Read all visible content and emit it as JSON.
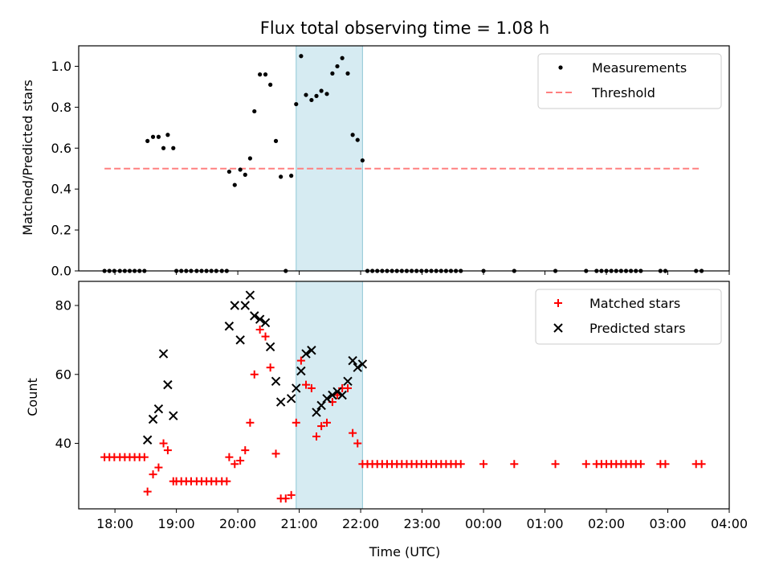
{
  "chart_data": [
    {
      "type": "scatter",
      "title": "Flux total observing time = 1.08 h",
      "xlabel": "",
      "ylabel": "Matched/Predicted stars",
      "ylim": [
        0,
        1.1
      ],
      "yticks": [
        "0.0",
        "0.2",
        "0.4",
        "0.6",
        "0.8",
        "1.0"
      ],
      "xlim": [
        17.41,
        28.0
      ],
      "shaded_span": [
        20.95,
        22.03
      ],
      "legend_position": "upper right",
      "legend": [
        "Measurements",
        "Threshold"
      ],
      "threshold": {
        "name": "Threshold",
        "value": 0.5,
        "x_range": [
          17.83,
          27.55
        ],
        "color": "#ff8080"
      },
      "series": [
        {
          "name": "Measurements",
          "color": "#000000",
          "points": [
            [
              17.83,
              0
            ],
            [
              17.91,
              0
            ],
            [
              17.99,
              0
            ],
            [
              18.08,
              0
            ],
            [
              18.16,
              0
            ],
            [
              18.24,
              0
            ],
            [
              18.32,
              0
            ],
            [
              18.4,
              0
            ],
            [
              18.48,
              0
            ],
            [
              18.53,
              0.635
            ],
            [
              18.62,
              0.655
            ],
            [
              18.71,
              0.655
            ],
            [
              18.79,
              0.6
            ],
            [
              18.86,
              0.665
            ],
            [
              18.95,
              0.6
            ],
            [
              19.0,
              0
            ],
            [
              19.08,
              0
            ],
            [
              19.16,
              0
            ],
            [
              19.24,
              0
            ],
            [
              19.33,
              0
            ],
            [
              19.41,
              0
            ],
            [
              19.49,
              0
            ],
            [
              19.57,
              0
            ],
            [
              19.65,
              0
            ],
            [
              19.74,
              0
            ],
            [
              19.82,
              0
            ],
            [
              19.86,
              0.485
            ],
            [
              19.95,
              0.42
            ],
            [
              20.04,
              0.495
            ],
            [
              20.12,
              0.47
            ],
            [
              20.2,
              0.55
            ],
            [
              20.27,
              0.78
            ],
            [
              20.36,
              0.96
            ],
            [
              20.45,
              0.96
            ],
            [
              20.53,
              0.91
            ],
            [
              20.62,
              0.635
            ],
            [
              20.7,
              0.46
            ],
            [
              20.78,
              0
            ],
            [
              20.87,
              0.465
            ],
            [
              20.95,
              0.815
            ],
            [
              21.03,
              1.05
            ],
            [
              21.11,
              0.86
            ],
            [
              21.2,
              0.835
            ],
            [
              21.28,
              0.855
            ],
            [
              21.36,
              0.88
            ],
            [
              21.45,
              0.865
            ],
            [
              21.54,
              0.965
            ],
            [
              21.62,
              1.0
            ],
            [
              21.7,
              1.04
            ],
            [
              21.79,
              0.965
            ],
            [
              21.87,
              0.665
            ],
            [
              21.95,
              0.64
            ],
            [
              22.03,
              0.54
            ],
            [
              22.11,
              0
            ],
            [
              22.19,
              0
            ],
            [
              22.27,
              0
            ],
            [
              22.35,
              0
            ],
            [
              22.43,
              0
            ],
            [
              22.51,
              0
            ],
            [
              22.59,
              0
            ],
            [
              22.67,
              0
            ],
            [
              22.75,
              0
            ],
            [
              22.83,
              0
            ],
            [
              22.91,
              0
            ],
            [
              22.99,
              0
            ],
            [
              23.07,
              0
            ],
            [
              23.15,
              0
            ],
            [
              23.23,
              0
            ],
            [
              23.31,
              0
            ],
            [
              23.39,
              0
            ],
            [
              23.47,
              0
            ],
            [
              23.55,
              0
            ],
            [
              23.63,
              0
            ],
            [
              24.0,
              0
            ],
            [
              24.5,
              0
            ],
            [
              25.17,
              0
            ],
            [
              25.67,
              0
            ],
            [
              25.84,
              0
            ],
            [
              25.92,
              0
            ],
            [
              26.0,
              0
            ],
            [
              26.08,
              0
            ],
            [
              26.16,
              0
            ],
            [
              26.24,
              0
            ],
            [
              26.32,
              0
            ],
            [
              26.4,
              0
            ],
            [
              26.48,
              0
            ],
            [
              26.56,
              0
            ],
            [
              26.88,
              0
            ],
            [
              26.96,
              0
            ],
            [
              27.46,
              0
            ],
            [
              27.55,
              0
            ]
          ]
        }
      ]
    },
    {
      "type": "scatter",
      "title": "",
      "xlabel": "Time (UTC)",
      "ylabel": "Count",
      "ylim": [
        21,
        87
      ],
      "yticks": [
        "40",
        "60",
        "80"
      ],
      "xlim": [
        17.41,
        28.0
      ],
      "xticks": [
        "18:00",
        "19:00",
        "20:00",
        "21:00",
        "22:00",
        "23:00",
        "00:00",
        "01:00",
        "02:00",
        "03:00",
        "04:00"
      ],
      "shaded_span": [
        20.95,
        22.03
      ],
      "legend_position": "upper right",
      "legend": [
        "Matched stars",
        "Predicted stars"
      ],
      "series": [
        {
          "name": "Matched stars",
          "marker": "plus",
          "color": "#ff0000",
          "points": [
            [
              17.83,
              36
            ],
            [
              17.91,
              36
            ],
            [
              17.99,
              36
            ],
            [
              18.08,
              36
            ],
            [
              18.16,
              36
            ],
            [
              18.24,
              36
            ],
            [
              18.32,
              36
            ],
            [
              18.4,
              36
            ],
            [
              18.48,
              36
            ],
            [
              18.53,
              26
            ],
            [
              18.62,
              31
            ],
            [
              18.71,
              33
            ],
            [
              18.79,
              40
            ],
            [
              18.86,
              38
            ],
            [
              18.95,
              29
            ],
            [
              19.0,
              29
            ],
            [
              19.08,
              29
            ],
            [
              19.16,
              29
            ],
            [
              19.24,
              29
            ],
            [
              19.33,
              29
            ],
            [
              19.41,
              29
            ],
            [
              19.49,
              29
            ],
            [
              19.57,
              29
            ],
            [
              19.65,
              29
            ],
            [
              19.74,
              29
            ],
            [
              19.82,
              29
            ],
            [
              19.86,
              36
            ],
            [
              19.95,
              34
            ],
            [
              20.04,
              35
            ],
            [
              20.12,
              38
            ],
            [
              20.2,
              46
            ],
            [
              20.27,
              60
            ],
            [
              20.36,
              73
            ],
            [
              20.45,
              71
            ],
            [
              20.53,
              62
            ],
            [
              20.62,
              37
            ],
            [
              20.7,
              24
            ],
            [
              20.78,
              24
            ],
            [
              20.87,
              25
            ],
            [
              20.95,
              46
            ],
            [
              21.03,
              64
            ],
            [
              21.11,
              57
            ],
            [
              21.2,
              56
            ],
            [
              21.28,
              42
            ],
            [
              21.36,
              45
            ],
            [
              21.45,
              46
            ],
            [
              21.54,
              52
            ],
            [
              21.62,
              54
            ],
            [
              21.7,
              56
            ],
            [
              21.79,
              56
            ],
            [
              21.87,
              43
            ],
            [
              21.95,
              40
            ],
            [
              22.03,
              34
            ],
            [
              22.11,
              34
            ],
            [
              22.19,
              34
            ],
            [
              22.27,
              34
            ],
            [
              22.35,
              34
            ],
            [
              22.43,
              34
            ],
            [
              22.51,
              34
            ],
            [
              22.59,
              34
            ],
            [
              22.67,
              34
            ],
            [
              22.75,
              34
            ],
            [
              22.83,
              34
            ],
            [
              22.91,
              34
            ],
            [
              22.99,
              34
            ],
            [
              23.07,
              34
            ],
            [
              23.15,
              34
            ],
            [
              23.23,
              34
            ],
            [
              23.31,
              34
            ],
            [
              23.39,
              34
            ],
            [
              23.47,
              34
            ],
            [
              23.55,
              34
            ],
            [
              23.63,
              34
            ],
            [
              24.0,
              34
            ],
            [
              24.5,
              34
            ],
            [
              25.17,
              34
            ],
            [
              25.67,
              34
            ],
            [
              25.84,
              34
            ],
            [
              25.92,
              34
            ],
            [
              26.0,
              34
            ],
            [
              26.08,
              34
            ],
            [
              26.16,
              34
            ],
            [
              26.24,
              34
            ],
            [
              26.32,
              34
            ],
            [
              26.4,
              34
            ],
            [
              26.48,
              34
            ],
            [
              26.56,
              34
            ],
            [
              26.88,
              34
            ],
            [
              26.96,
              34
            ],
            [
              27.46,
              34
            ],
            [
              27.55,
              34
            ]
          ]
        },
        {
          "name": "Predicted stars",
          "marker": "x",
          "color": "#000000",
          "points": [
            [
              18.53,
              41
            ],
            [
              18.62,
              47
            ],
            [
              18.71,
              50
            ],
            [
              18.79,
              66
            ],
            [
              18.86,
              57
            ],
            [
              18.95,
              48
            ],
            [
              19.86,
              74
            ],
            [
              19.95,
              80
            ],
            [
              20.04,
              70
            ],
            [
              20.12,
              80
            ],
            [
              20.2,
              83
            ],
            [
              20.27,
              77
            ],
            [
              20.36,
              76
            ],
            [
              20.45,
              75
            ],
            [
              20.53,
              68
            ],
            [
              20.62,
              58
            ],
            [
              20.7,
              52
            ],
            [
              20.87,
              53
            ],
            [
              20.95,
              56
            ],
            [
              21.03,
              61
            ],
            [
              21.11,
              66
            ],
            [
              21.2,
              67
            ],
            [
              21.28,
              49
            ],
            [
              21.36,
              51
            ],
            [
              21.45,
              53
            ],
            [
              21.54,
              54
            ],
            [
              21.62,
              55
            ],
            [
              21.7,
              54
            ],
            [
              21.79,
              58
            ],
            [
              21.87,
              64
            ],
            [
              21.95,
              62
            ],
            [
              22.03,
              63
            ]
          ]
        }
      ]
    }
  ]
}
